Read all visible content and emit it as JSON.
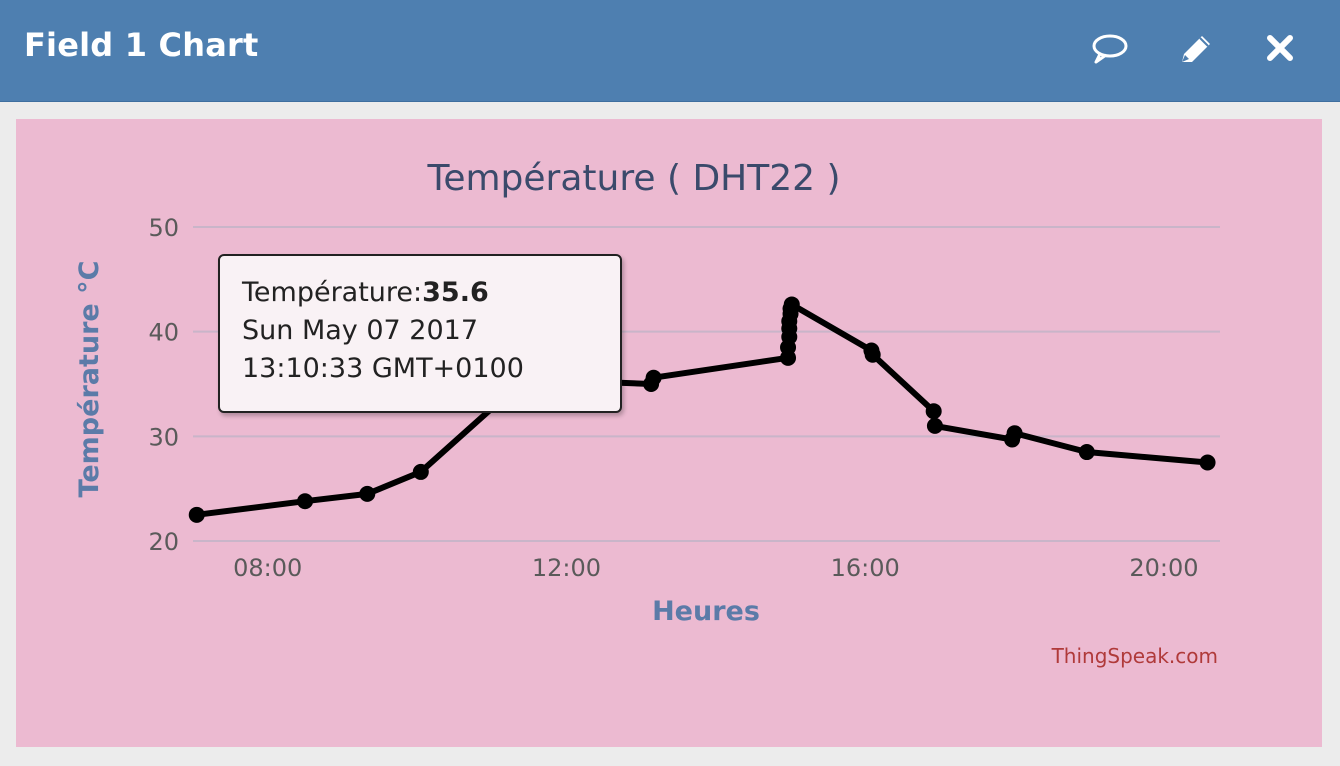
{
  "header": {
    "title": "Field 1 Chart",
    "icons": [
      "comment-icon",
      "pencil-icon",
      "close-icon"
    ]
  },
  "colors": {
    "header_bg": "#4e7fb0",
    "panel_bg": "#ecbad1",
    "line": "#000000",
    "axis_label": "#5b7ba8",
    "credit": "#b03a3a"
  },
  "chart_data": {
    "type": "line",
    "title": "Température ( DHT22 )",
    "xlabel": "Heures",
    "ylabel": "Température °C",
    "xlim": [
      "07:00",
      "20:45"
    ],
    "ylim": [
      20,
      50
    ],
    "x_ticks": [
      "08:00",
      "12:00",
      "16:00",
      "20:00"
    ],
    "y_ticks": [
      20,
      30,
      40,
      50
    ],
    "grid": true,
    "legend": "none",
    "series": [
      {
        "values_x": [
          "07:03",
          "08:30",
          "09:20",
          "10:03",
          "11:20",
          "12:00",
          "12:02",
          "13:08",
          "13:10",
          "14:58",
          "14:58",
          "14:59",
          "14:59",
          "14:59",
          "15:00",
          "15:00",
          "15:01",
          "16:05",
          "16:06",
          "16:55",
          "16:56",
          "17:58",
          "18:00",
          "18:58",
          "20:35"
        ],
        "values_y": [
          22.5,
          23.8,
          24.5,
          26.6,
          34.8,
          33.8,
          35.3,
          35.0,
          35.6,
          37.5,
          38.5,
          39.5,
          40.3,
          41.0,
          41.7,
          42.2,
          42.6,
          38.2,
          37.8,
          32.4,
          31.0,
          29.7,
          30.3,
          28.5,
          27.5
        ]
      }
    ],
    "tooltip": {
      "label": "Température:",
      "value": "35.6",
      "date": "Sun May 07 2017",
      "time": "13:10:33 GMT+0100"
    },
    "credit": "ThingSpeak.com"
  }
}
